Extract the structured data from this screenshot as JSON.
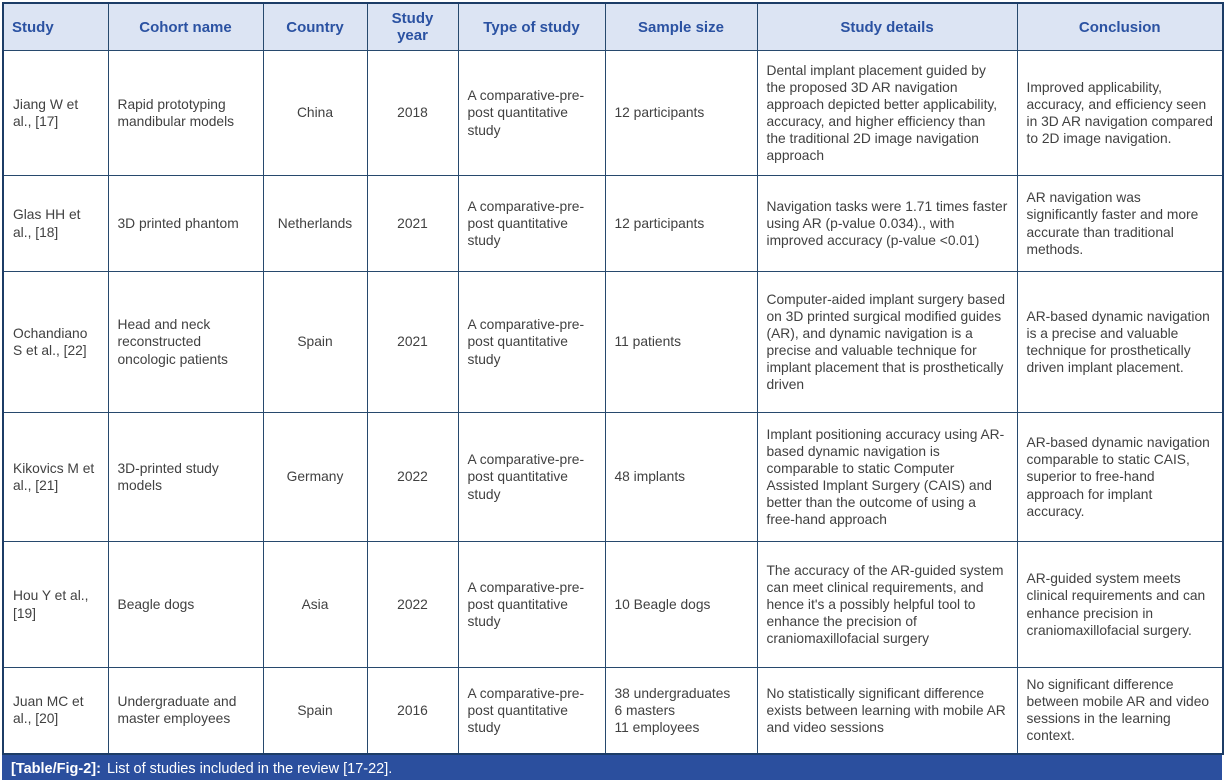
{
  "colors": {
    "outer_border": "#1c3c66",
    "inner_border": "#27496d",
    "header_bg": "#dce4f3",
    "header_text": "#2b52a2",
    "body_text": "#414141",
    "caption_bg": "#2b4f9e",
    "caption_text": "#ffffff"
  },
  "table": {
    "columns": [
      "Study",
      "Cohort name",
      "Country",
      "Study year",
      "Type of study",
      "Sample size",
      "Study details",
      "Conclusion"
    ],
    "rows": [
      {
        "study": "Jiang W et al., [17]",
        "cohort": "Rapid prototyping mandibular models",
        "country": "China",
        "year": "2018",
        "type": "A comparative-pre-post quantitative study",
        "sample": "12 participants",
        "details": "Dental implant placement guided by the proposed 3D AR navigation approach depicted better applicability, accuracy, and higher efficiency than the traditional 2D image navigation approach",
        "conclusion": "Improved applicability, accuracy, and efficiency seen in 3D AR navigation compared to 2D image navigation."
      },
      {
        "study": "Glas HH et al., [18]",
        "cohort": "3D printed phantom",
        "country": "Netherlands",
        "year": "2021",
        "type": "A comparative-pre-post quantitative study",
        "sample": "12 participants",
        "details": "Navigation tasks were 1.71 times faster using AR (p-value 0.034)., with improved accuracy (p-value <0.01)",
        "conclusion": "AR navigation was significantly faster and more accurate than traditional methods."
      },
      {
        "study": "Ochandiano S et al., [22]",
        "cohort": "Head and neck reconstructed oncologic patients",
        "country": "Spain",
        "year": "2021",
        "type": "A comparative-pre-post quantitative study",
        "sample": "11 patients",
        "details": "Computer-aided implant surgery based on 3D printed surgical modified guides (AR), and dynamic navigation is a precise and valuable technique for implant placement that is prosthetically driven",
        "conclusion": "AR-based dynamic navigation is a precise and valuable technique for prosthetically driven implant placement."
      },
      {
        "study": "Kikovics M et al., [21]",
        "cohort": "3D-printed study models",
        "country": "Germany",
        "year": "2022",
        "type": "A comparative-pre-post quantitative study",
        "sample": "48 implants",
        "details": "Implant positioning accuracy using AR-based dynamic navigation is comparable to static Computer Assisted Implant Surgery (CAIS) and better than the outcome of using a free-hand approach",
        "conclusion": "AR-based dynamic navigation comparable to static CAIS, superior to free-hand approach for implant accuracy."
      },
      {
        "study": "Hou Y et al., [19]",
        "cohort": "Beagle dogs",
        "country": "Asia",
        "year": "2022",
        "type": "A comparative-pre-post quantitative study",
        "sample": "10 Beagle dogs",
        "details": "The accuracy of the AR-guided system can meet clinical requirements, and hence it's a possibly helpful tool to enhance the precision of craniomaxillofacial surgery",
        "conclusion": "AR-guided system meets clinical requirements and can enhance precision in craniomaxillofacial surgery."
      },
      {
        "study": "Juan MC et al., [20]",
        "cohort": "Undergraduate and master employees",
        "country": "Spain",
        "year": "2016",
        "type": "A comparative-pre-post quantitative study",
        "sample": "38 undergraduates\n6 masters\n11 employees",
        "details": "No statistically significant difference exists between learning with mobile AR and video sessions",
        "conclusion": "No significant difference between mobile AR and video sessions in the learning context."
      }
    ],
    "caption_label": "[Table/Fig-2]:",
    "caption_text": "List of studies included in the review [17-22]."
  }
}
